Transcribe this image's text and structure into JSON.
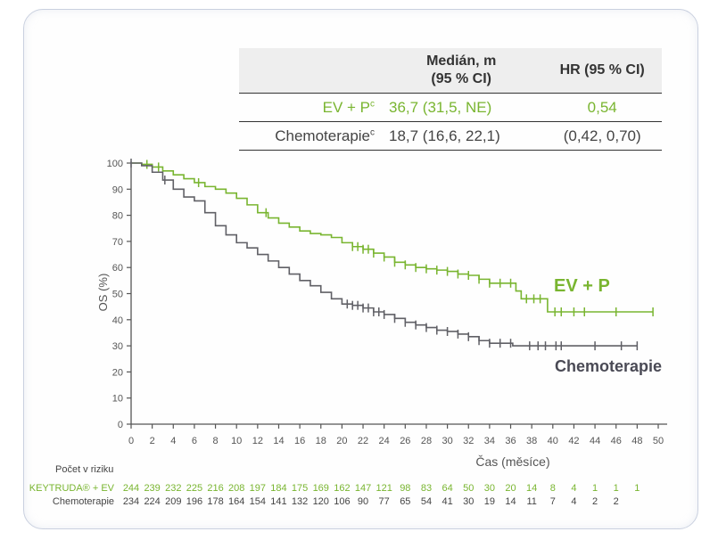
{
  "hr_table": {
    "headers": [
      "",
      "Medián, m (95 % CI)",
      "HR (95 % CI)"
    ],
    "header_median_line1": "Medián, m",
    "header_median_line2": "(95 % CI)",
    "rows": [
      {
        "label": "EV + P",
        "sup": "c",
        "median": "36,7 (31,5, NE)",
        "hr": "0,54"
      },
      {
        "label": "Chemoterapie",
        "sup": "c",
        "median": "18,7 (16,6, 22,1)",
        "hr": "(0,42, 0,70)"
      }
    ]
  },
  "risk_table": {
    "title": "Počet v riziku",
    "rows": [
      {
        "label": "KEYTRUDA® + EV",
        "values": [
          244,
          239,
          232,
          225,
          216,
          208,
          197,
          184,
          175,
          169,
          162,
          147,
          121,
          98,
          83,
          64,
          50,
          30,
          20,
          14,
          8,
          4,
          1,
          1,
          1
        ]
      },
      {
        "label": "Chemoterapie",
        "values": [
          234,
          224,
          209,
          196,
          178,
          164,
          154,
          141,
          132,
          120,
          106,
          90,
          77,
          65,
          54,
          41,
          30,
          19,
          14,
          11,
          7,
          4,
          2,
          2
        ]
      }
    ]
  },
  "colors": {
    "evp": "#79b530",
    "chemo": "#606066",
    "axis": "#555555"
  },
  "chart_data": {
    "type": "line",
    "title": "",
    "xlabel": "Čas (měsíce)",
    "ylabel": "OS (%)",
    "xlim": [
      0,
      50
    ],
    "ylim": [
      0,
      100
    ],
    "xticks": [
      0,
      2,
      4,
      6,
      8,
      10,
      12,
      14,
      16,
      18,
      20,
      22,
      24,
      26,
      28,
      30,
      32,
      34,
      36,
      38,
      40,
      42,
      44,
      46,
      48,
      50
    ],
    "yticks": [
      0,
      10,
      20,
      30,
      40,
      50,
      60,
      70,
      80,
      90,
      100
    ],
    "grid": false,
    "series": [
      {
        "name": "EV + P",
        "label": "EV + P",
        "step": true,
        "x": [
          0,
          1,
          2,
          3,
          4,
          5,
          6,
          7,
          8,
          9,
          10,
          11,
          12,
          13,
          14,
          15,
          16,
          17,
          18,
          19,
          20,
          21,
          22,
          23,
          24,
          25,
          26,
          27,
          28,
          29,
          30,
          31,
          32,
          33,
          34,
          35,
          36,
          36.5,
          37,
          38,
          39,
          39.5,
          49.5
        ],
        "y": [
          100,
          99.5,
          98.5,
          97,
          95.5,
          94,
          92.5,
          91,
          90,
          88.5,
          86.5,
          84,
          81,
          79,
          77,
          75.5,
          74,
          73,
          72.5,
          71.5,
          69.5,
          68,
          67,
          65.5,
          64,
          62,
          61,
          60,
          59.5,
          59,
          58.5,
          57.5,
          57,
          55.5,
          54,
          54,
          54,
          51,
          48,
          48,
          48,
          43,
          43
        ],
        "censor_x": [
          1.5,
          2.6,
          6.4,
          12.8,
          21,
          21.5,
          22,
          22.5,
          23,
          24,
          25,
          26,
          27,
          28,
          29,
          30,
          31,
          32,
          33,
          34,
          35,
          36,
          37.5,
          38.2,
          38.8,
          40.2,
          40.8,
          42,
          43,
          46,
          49.5
        ]
      },
      {
        "name": "Chemoterapie",
        "label": "Chemoterapie",
        "step": true,
        "x": [
          0,
          1,
          2,
          3,
          4,
          5,
          6,
          7,
          8,
          9,
          10,
          11,
          12,
          13,
          14,
          15,
          16,
          17,
          18,
          19,
          20,
          21,
          22,
          23,
          24,
          25,
          26,
          27,
          28,
          29,
          30,
          31,
          32,
          33,
          34,
          35,
          36,
          36.2,
          48
        ],
        "y": [
          100,
          99,
          96.5,
          93.5,
          90,
          87,
          85.5,
          81,
          76,
          72.5,
          69.5,
          67.5,
          65,
          62.5,
          60,
          57.5,
          55,
          53,
          50.5,
          48,
          46,
          45.5,
          44.5,
          43,
          42,
          40.5,
          39,
          38,
          37,
          36,
          35.5,
          34.5,
          33.5,
          32,
          31,
          31,
          31,
          30,
          30
        ],
        "censor_x": [
          0,
          3.2,
          20.5,
          21,
          21.5,
          22,
          22.5,
          23,
          23.5,
          24,
          25,
          26,
          27,
          28,
          29,
          30,
          31,
          32,
          33,
          34,
          35,
          36,
          37.8,
          38.6,
          39.3,
          40.3,
          40.8,
          44,
          46.5,
          48
        ]
      }
    ],
    "annotations": [
      {
        "text": "EV + P",
        "series": "EV + P"
      },
      {
        "text": "Chemoterapie",
        "series": "Chemoterapie"
      }
    ]
  }
}
